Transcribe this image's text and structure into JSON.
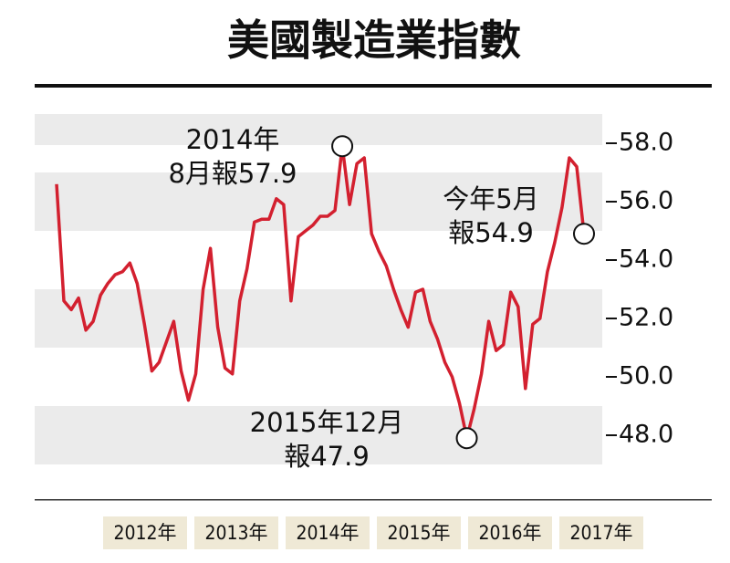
{
  "chart_data": {
    "type": "line",
    "title": "美國製造業指數",
    "series": [
      {
        "color": "#d3202f",
        "values": [
          56.6,
          52.6,
          52.3,
          52.7,
          51.6,
          51.9,
          52.8,
          53.2,
          53.5,
          53.6,
          53.9,
          53.2,
          51.8,
          50.2,
          50.5,
          51.2,
          51.9,
          50.2,
          49.2,
          50.1,
          53.0,
          54.4,
          51.7,
          50.3,
          50.1,
          52.6,
          53.7,
          55.3,
          55.4,
          55.4,
          56.1,
          55.9,
          52.6,
          54.8,
          55.0,
          55.2,
          55.5,
          55.5,
          55.7,
          57.9,
          55.9,
          57.3,
          57.5,
          54.9,
          54.3,
          53.8,
          53.0,
          52.3,
          51.7,
          52.9,
          53.0,
          51.9,
          51.3,
          50.5,
          50.0,
          49.1,
          47.9,
          48.9,
          50.1,
          51.9,
          50.9,
          51.1,
          52.9,
          52.4,
          49.6,
          51.8,
          52.0,
          53.6,
          54.6,
          55.8,
          57.5,
          57.2,
          54.9
        ]
      }
    ],
    "year_labels": [
      "2012年",
      "2013年",
      "2014年",
      "2015年",
      "2016年",
      "2017年"
    ],
    "ylim": [
      47,
      59
    ],
    "yticks": [
      {
        "value": 48,
        "label": "48.0"
      },
      {
        "value": 50,
        "label": "50.0"
      },
      {
        "value": 52,
        "label": "52.0"
      },
      {
        "value": 54,
        "label": "54.0"
      },
      {
        "value": 56,
        "label": "56.0"
      },
      {
        "value": 58,
        "label": "58.0"
      }
    ],
    "annotations": [
      {
        "lines": [
          "2014年",
          "8月報57.9"
        ],
        "value": 57.9
      },
      {
        "lines": [
          "2015年12月",
          "報47.9"
        ],
        "value": 47.9
      },
      {
        "lines": [
          "今年5月",
          "報54.9"
        ],
        "value": 54.9
      }
    ]
  }
}
